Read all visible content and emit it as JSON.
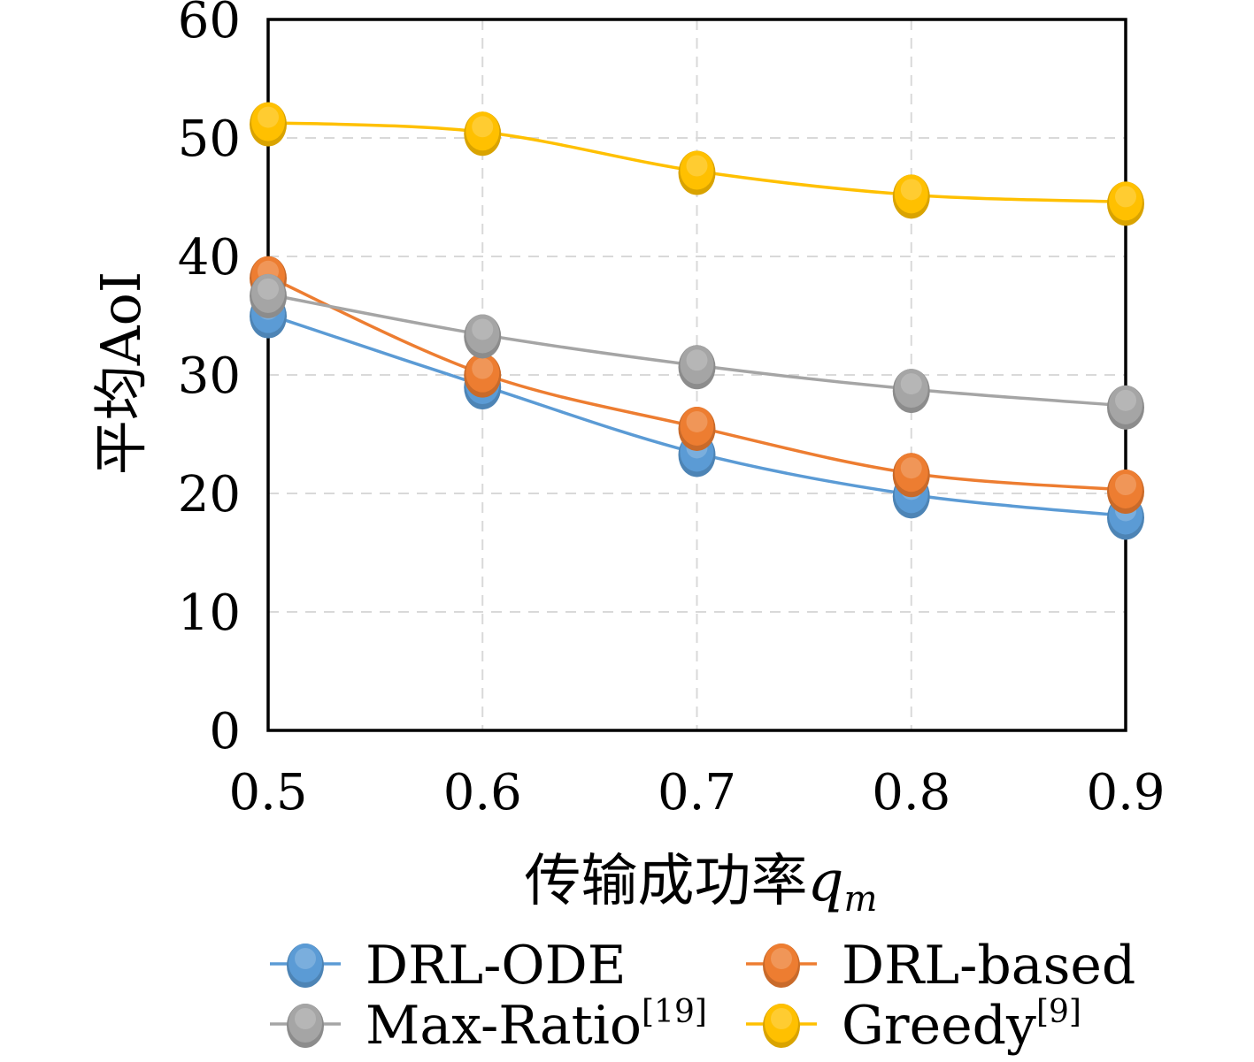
{
  "chart_data": {
    "type": "line",
    "smooth": true,
    "markers": true,
    "grid": true,
    "legend": "bottom",
    "ylabel": "平均AoI",
    "xlabel": {
      "text": "传输成功率",
      "var": "q",
      "sub": "m"
    },
    "xlim": [
      0.5,
      0.9
    ],
    "ylim": [
      0,
      60
    ],
    "x": [
      0.5,
      0.6,
      0.7,
      0.8,
      0.9
    ],
    "xtick_labels": [
      "0.5",
      "0.6",
      "0.7",
      "0.8",
      "0.9"
    ],
    "ytick_labels": [
      "0",
      "10",
      "20",
      "30",
      "40",
      "50",
      "60"
    ],
    "series": [
      {
        "name": "DRL-ODE",
        "color": "#5B9BD5",
        "values": [
          35.1,
          29.1,
          23.4,
          19.9,
          18.1
        ]
      },
      {
        "name": "DRL-based",
        "color": "#ED7D31",
        "values": [
          38.3,
          30.1,
          25.6,
          21.7,
          20.3
        ]
      },
      {
        "name": "Max-Ratio",
        "name_sup": "[19]",
        "color": "#A5A5A5",
        "values": [
          36.8,
          33.4,
          30.8,
          28.8,
          27.4
        ]
      },
      {
        "name": "Greedy",
        "name_sup": "[9]",
        "color": "#FFC000",
        "values": [
          51.3,
          50.5,
          47.2,
          45.2,
          44.6
        ]
      }
    ]
  }
}
